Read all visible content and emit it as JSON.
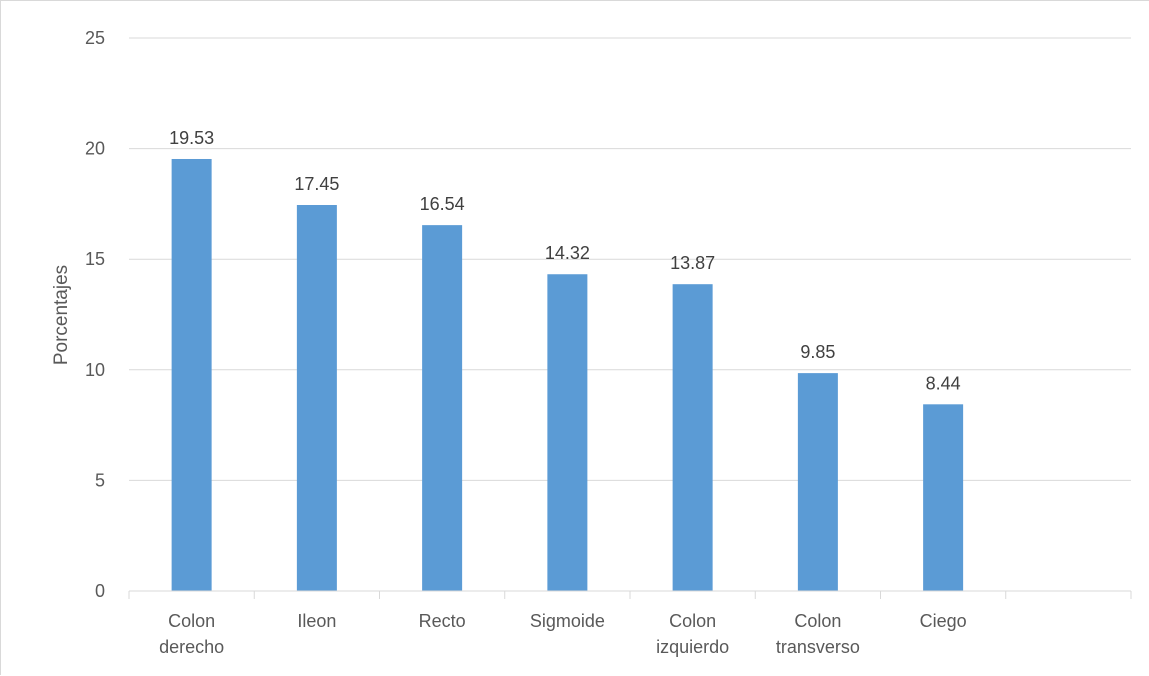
{
  "chart_data": {
    "type": "bar",
    "title": "",
    "xlabel": "",
    "ylabel": "Porcentajes",
    "ylim": [
      0,
      25
    ],
    "yticks": [
      0,
      5,
      10,
      15,
      20,
      25
    ],
    "grid": true,
    "legend": "none",
    "bar_color": "#5b9bd5",
    "categories": [
      [
        "Colon",
        "derecho"
      ],
      [
        "Ileon"
      ],
      [
        "Recto"
      ],
      [
        "Sigmoide"
      ],
      [
        "Colon",
        "izquierdo"
      ],
      [
        "Colon",
        "transverso"
      ],
      [
        "Ciego"
      ]
    ],
    "values": [
      19.53,
      17.45,
      16.54,
      14.32,
      13.87,
      9.85,
      8.44
    ],
    "data_labels": [
      "19.53",
      "17.45",
      "16.54",
      "14.32",
      "13.87",
      "9.85",
      "8.44"
    ]
  }
}
